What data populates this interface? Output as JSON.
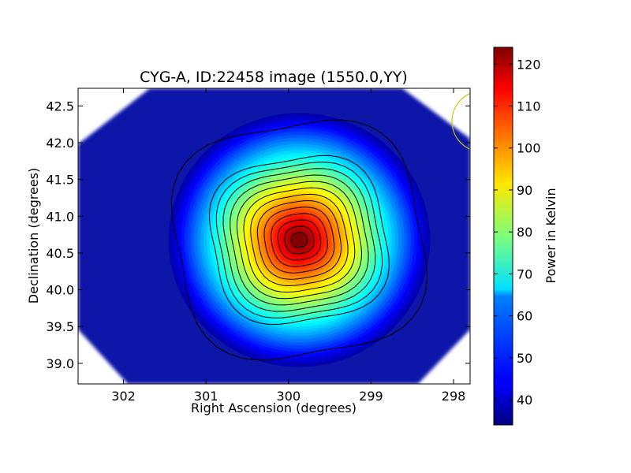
{
  "chart_data": {
    "type": "heatmap",
    "title": "CYG-A, ID:22458 image (1550.0,YY)",
    "xlabel": "Right Ascension (degrees)",
    "ylabel": "Declination (degrees)",
    "colorbar_label": "Power in Kelvin",
    "xlim": [
      302.55,
      297.8
    ],
    "ylim": [
      38.72,
      42.74
    ],
    "x_ticks": [
      "302",
      "301",
      "300",
      "299",
      "298"
    ],
    "x_tick_values": [
      302,
      301,
      300,
      299,
      298
    ],
    "y_ticks": [
      "39.0",
      "39.5",
      "40.0",
      "40.5",
      "41.0",
      "41.5",
      "42.0",
      "42.5"
    ],
    "y_tick_values": [
      39.0,
      39.5,
      40.0,
      40.5,
      41.0,
      41.5,
      42.0,
      42.5
    ],
    "colorbar_ticks": [
      "40",
      "50",
      "60",
      "70",
      "80",
      "90",
      "100",
      "110",
      "120"
    ],
    "colorbar_tick_values": [
      40,
      50,
      60,
      70,
      80,
      90,
      100,
      110,
      120
    ],
    "colorbar_range": [
      34,
      124
    ],
    "colormap": "jet",
    "source_peak": {
      "ra": 299.87,
      "dec": 40.72,
      "value": 124
    },
    "background_level": 38,
    "contour_levels": [
      42,
      48,
      54,
      60,
      66,
      72,
      78,
      84,
      90,
      96,
      102,
      108,
      114,
      120
    ],
    "beam_marker": {
      "ra": 297.65,
      "dec": 42.29,
      "radius_deg": 0.37,
      "color": "#c8c800"
    },
    "grid": false
  }
}
